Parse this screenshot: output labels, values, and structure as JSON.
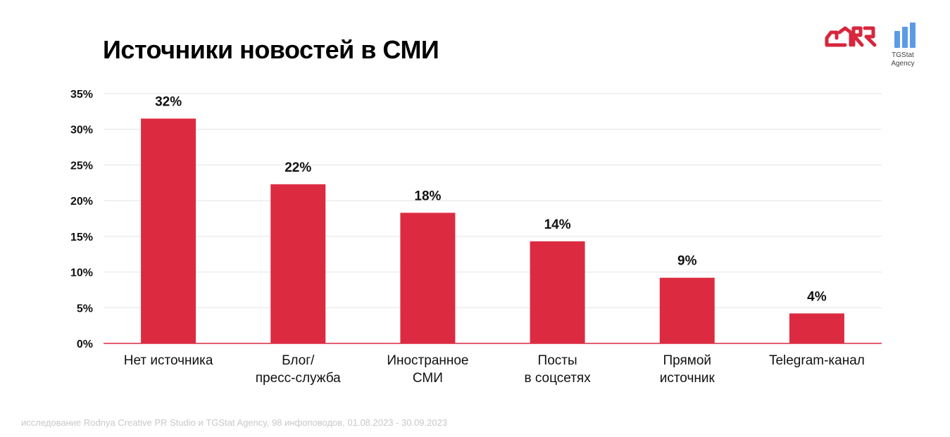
{
  "title": "Источники новостей в СМИ",
  "footer": "исследование Rodnya Creative PR Studio и TGStat Agency, 98 инфоповодов, 01.08.2023 - 30.09.2023",
  "logos": {
    "tgstat_line1": "TGStat",
    "tgstat_line2": "Agency"
  },
  "colors": {
    "bar": "#dc2b40",
    "grid": "#e3e3e3",
    "axis": "#dc2b40",
    "logo_red": "#d7263d",
    "logo_blue": "#5b9be6"
  },
  "chart_data": {
    "type": "bar",
    "title": "Источники новостей в СМИ",
    "categories": [
      [
        "Нет источника"
      ],
      [
        "Блог/",
        "пресс-служба"
      ],
      [
        "Иностранное",
        "СМИ"
      ],
      [
        "Посты",
        "в соцсетях"
      ],
      [
        "Прямой",
        "источник"
      ],
      [
        "Telegram-канал"
      ]
    ],
    "values": [
      31.5,
      22.3,
      18.3,
      14.3,
      9.2,
      4.2
    ],
    "data_labels": [
      "32%",
      "22%",
      "18%",
      "14%",
      "9%",
      "4%"
    ],
    "ylim": [
      0,
      35
    ],
    "yticks": [
      "0%",
      "5%",
      "10%",
      "15%",
      "20%",
      "25%",
      "30%",
      "35%"
    ],
    "grid": true,
    "legend": "none"
  }
}
